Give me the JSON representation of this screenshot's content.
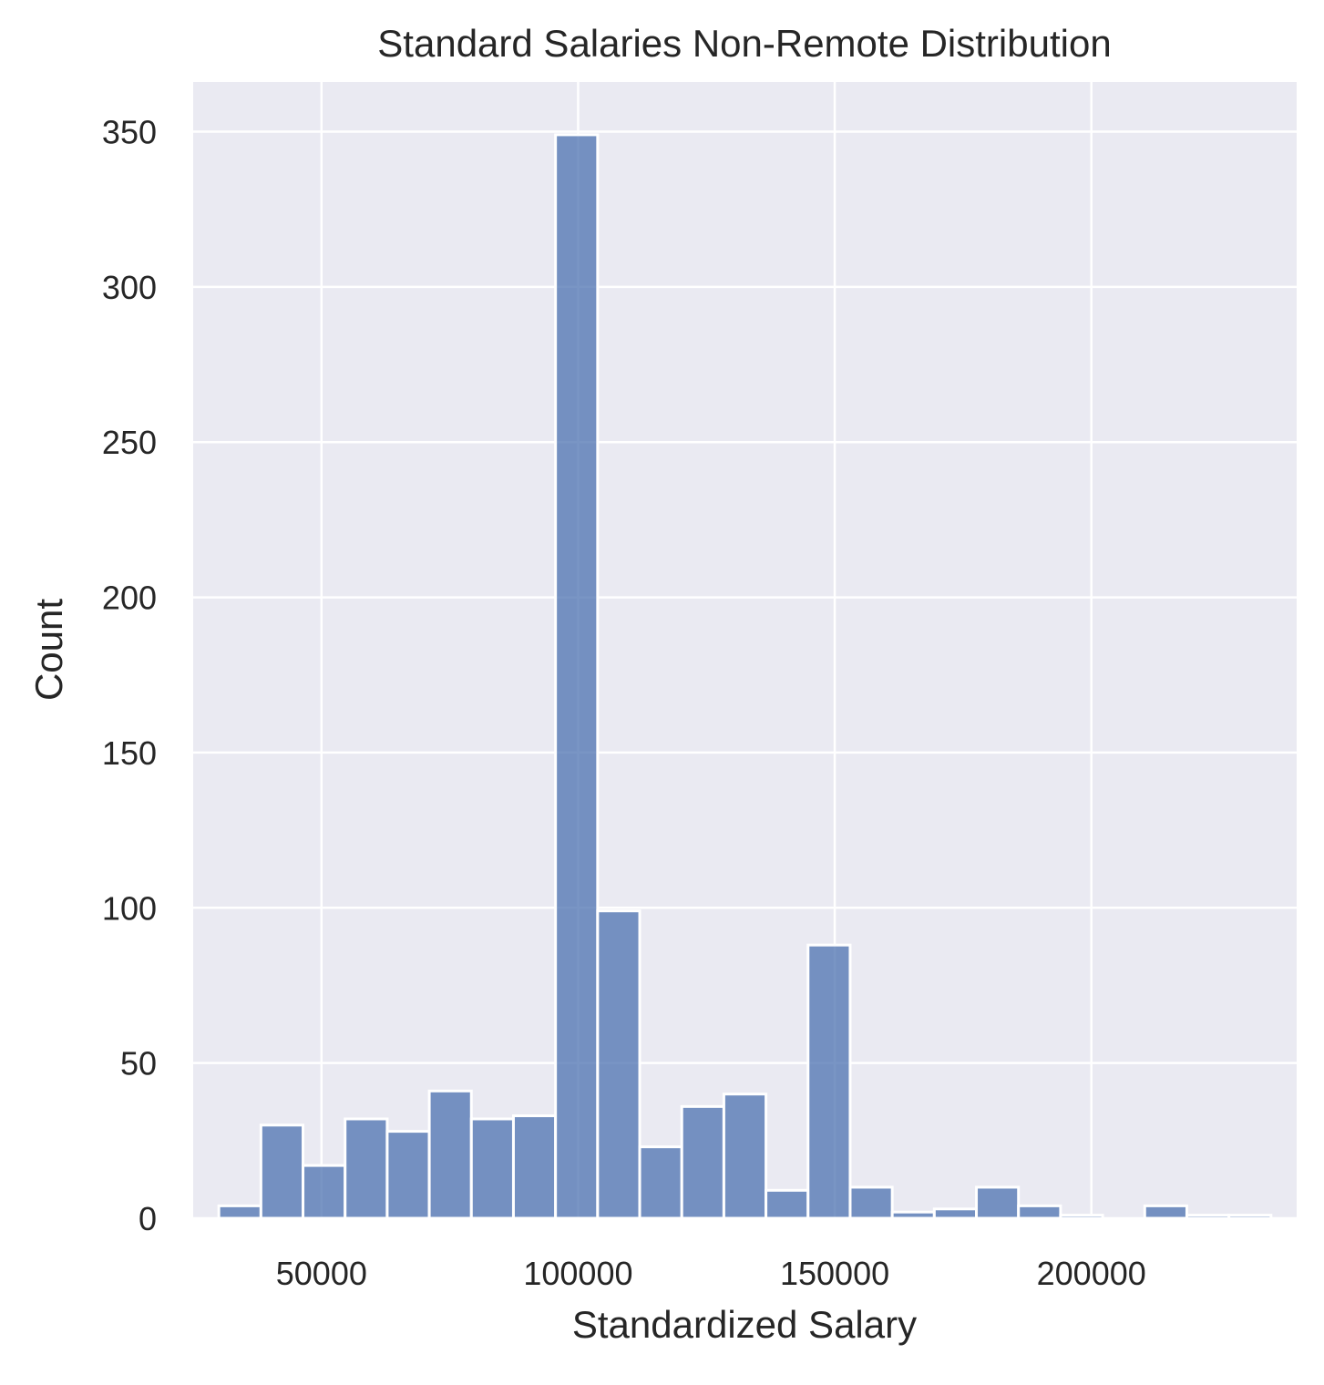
{
  "chart_data": {
    "type": "bar",
    "title": "Standard Salaries Non-Remote Distribution",
    "xlabel": "Standardized Salary",
    "ylabel": "Count",
    "xlim": [
      25000,
      240000
    ],
    "ylim": [
      0,
      366
    ],
    "xticks": [
      50000,
      100000,
      150000,
      200000
    ],
    "yticks": [
      0,
      50,
      100,
      150,
      200,
      250,
      300,
      350
    ],
    "grid": true,
    "legend": "none",
    "bin_edges": [
      30000,
      38200,
      46400,
      54600,
      62800,
      71000,
      79200,
      87400,
      95600,
      103800,
      112000,
      120200,
      128400,
      136600,
      144800,
      153000,
      161200,
      169400,
      177600,
      185800,
      194000,
      202200,
      210400,
      218600,
      226800,
      235000
    ],
    "counts": [
      4,
      30,
      17,
      32,
      28,
      41,
      32,
      33,
      349,
      99,
      23,
      36,
      40,
      9,
      88,
      10,
      2,
      3,
      10,
      4,
      1,
      0,
      4,
      1,
      1
    ]
  },
  "colors": {
    "background": "#eaeaf2",
    "grid": "#ffffff",
    "bar_fill": "#4c72b0",
    "bar_edge": "#ffffff",
    "text": "#262626"
  }
}
